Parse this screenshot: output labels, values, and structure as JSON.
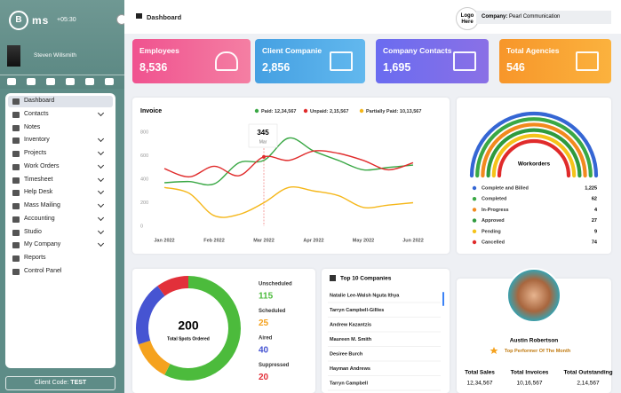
{
  "sidebar": {
    "logo_mark": "B",
    "logo_text": "ms",
    "time": "+05:30",
    "user": "Steven Willsmith",
    "menu": [
      {
        "label": "Dashboard",
        "submenu": false
      },
      {
        "label": "Contacts",
        "submenu": true
      },
      {
        "label": "Notes",
        "submenu": false
      },
      {
        "label": "Inventory",
        "submenu": true
      },
      {
        "label": "Projects",
        "submenu": true
      },
      {
        "label": "Work Orders",
        "submenu": true
      },
      {
        "label": "Timesheet",
        "submenu": true
      },
      {
        "label": "Help Desk",
        "submenu": true
      },
      {
        "label": "Mass Mailing",
        "submenu": true
      },
      {
        "label": "Accounting",
        "submenu": true
      },
      {
        "label": "Studio",
        "submenu": true
      },
      {
        "label": "My Company",
        "submenu": true
      },
      {
        "label": "Reports",
        "submenu": false
      },
      {
        "label": "Control Panel",
        "submenu": false
      }
    ],
    "client_code_label": "Client Code:",
    "client_code": "TEST"
  },
  "header": {
    "title": "Dashboard",
    "logo": "Logo Here",
    "company_label": "Company:",
    "company": "Pearl Communication"
  },
  "stats": [
    {
      "label": "Employees",
      "value": "8,536",
      "color": "#f0528f",
      "color2": "#f47fa3"
    },
    {
      "label": "Client Companie",
      "value": "2,856",
      "color": "#45a0e2",
      "color2": "#62b8ee"
    },
    {
      "label": "Company Contacts",
      "value": "1,695",
      "color": "#6a6cf0",
      "color2": "#8a70e6"
    },
    {
      "label": "Total Agencies",
      "value": "546",
      "color": "#f7962a",
      "color2": "#fbb23e"
    }
  ],
  "chart_data": [
    {
      "type": "line",
      "title": "Invoice",
      "categories": [
        "Jan 2022",
        null,
        "Feb 2022",
        null,
        "Mar 2022",
        null,
        "Apr 2022",
        null,
        "May 2022",
        null,
        "Jun 2022"
      ],
      "series": [
        {
          "name": "Paid: 12,34,567",
          "color": "#3aa845",
          "values": [
            370,
            380,
            360,
            540,
            560,
            750,
            640,
            560,
            480,
            500,
            520
          ]
        },
        {
          "name": "Unpaid: 2,15,567",
          "color": "#e02b2b",
          "values": [
            490,
            420,
            510,
            430,
            590,
            560,
            640,
            620,
            560,
            480,
            540
          ]
        },
        {
          "name": "Partially Paid: 10,13,567",
          "color": "#f5b71a",
          "values": [
            330,
            280,
            90,
            100,
            200,
            330,
            300,
            260,
            160,
            180,
            200
          ]
        }
      ],
      "ylim": [
        0,
        800
      ],
      "yticks": [
        0,
        200,
        400,
        600,
        800
      ],
      "grid": false,
      "tooltip": {
        "value": 345,
        "label": "Mar"
      }
    },
    {
      "type": "pie",
      "total": 200,
      "total_label": "Total Spots Ordered",
      "categories": [
        "Unscheduled",
        "Scheduled",
        "Aired",
        "Suppressed"
      ],
      "values": [
        115,
        25,
        40,
        20
      ],
      "colors": [
        "#4cbb3c",
        "#f5a21e",
        "#4654d2",
        "#e2303a"
      ]
    }
  ],
  "workorders": {
    "title": "Workorders",
    "items": [
      {
        "label": "Complete and Billed",
        "value": "1,225",
        "color": "#3566d4"
      },
      {
        "label": "Completed",
        "value": "62",
        "color": "#3aa845"
      },
      {
        "label": "In-Progress",
        "value": "4",
        "color": "#f28a1e"
      },
      {
        "label": "Approved",
        "value": "27",
        "color": "#2f9a3e"
      },
      {
        "label": "Pending",
        "value": "9",
        "color": "#f5c31a"
      },
      {
        "label": "Cancelled",
        "value": "74",
        "color": "#e02b2b"
      }
    ]
  },
  "top_companies": {
    "title": "Top 10 Companies",
    "rows": [
      "Natalie Lee-Walsh Nguta Ithya",
      "Tarryn Campbell-Gillies",
      "Andrew Kazantzis",
      "Maureen M. Smith",
      "Desiree Burch",
      "Hayman Andrews",
      "Tarryn Campbell"
    ]
  },
  "profile": {
    "name": "Austin Robertson",
    "subtitle": "Top Performer Of The Month",
    "stats": [
      {
        "label": "Total Sales",
        "value": "12,34,567"
      },
      {
        "label": "Total Invoices",
        "value": "10,16,567"
      },
      {
        "label": "Total Outstanding",
        "value": "2,14,567"
      }
    ]
  }
}
